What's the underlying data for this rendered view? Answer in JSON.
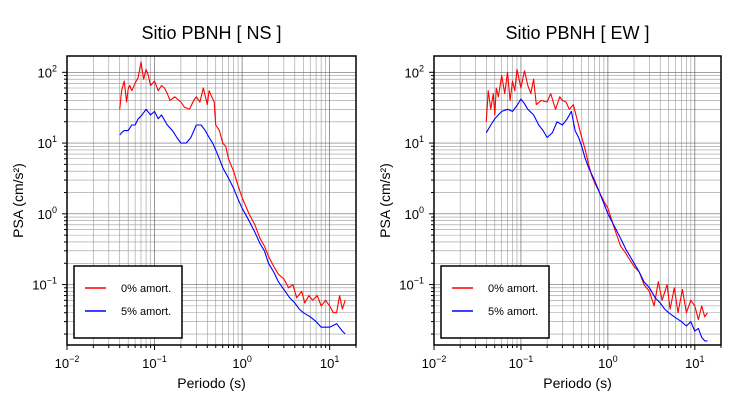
{
  "chart_data": [
    {
      "type": "line",
      "title": "Sitio PBNH [ NS ]",
      "xlabel": "Periodo (s)",
      "ylabel": "PSA (cm/s²)",
      "xscale": "log",
      "yscale": "log",
      "xlim": [
        0.01,
        20
      ],
      "ylim": [
        0.014,
        170
      ],
      "grid": true,
      "legend_position": "bottom-left",
      "xticks": [
        {
          "mant": "10",
          "exp": "−2"
        },
        {
          "mant": "10",
          "exp": "−1"
        },
        {
          "mant": "10",
          "exp": "0"
        },
        {
          "mant": "10",
          "exp": "1"
        }
      ],
      "yticks": [
        {
          "mant": "10",
          "exp": "−1"
        },
        {
          "mant": "10",
          "exp": "0"
        },
        {
          "mant": "10",
          "exp": "1"
        },
        {
          "mant": "10",
          "exp": "2"
        }
      ],
      "series": [
        {
          "name": "0% amort.",
          "color": "#ff0000",
          "x": [
            0.04,
            0.042,
            0.045,
            0.048,
            0.05,
            0.052,
            0.055,
            0.06,
            0.065,
            0.07,
            0.075,
            0.08,
            0.085,
            0.09,
            0.1,
            0.11,
            0.12,
            0.13,
            0.14,
            0.15,
            0.17,
            0.2,
            0.22,
            0.25,
            0.28,
            0.3,
            0.33,
            0.36,
            0.4,
            0.42,
            0.45,
            0.48,
            0.5,
            0.55,
            0.6,
            0.65,
            0.7,
            0.8,
            0.9,
            1.0,
            1.2,
            1.4,
            1.6,
            1.8,
            2.0,
            2.3,
            2.6,
            3.0,
            3.4,
            3.8,
            4.2,
            4.8,
            5.2,
            5.8,
            6.4,
            7.2,
            8.0,
            9.0,
            10.0,
            11.0,
            12.0,
            13.0,
            14.0,
            15.0
          ],
          "y": [
            30,
            55,
            75,
            38,
            58,
            65,
            55,
            70,
            85,
            140,
            80,
            110,
            90,
            65,
            75,
            55,
            65,
            60,
            50,
            40,
            45,
            38,
            32,
            30,
            40,
            45,
            38,
            60,
            35,
            55,
            45,
            38,
            18,
            15,
            10,
            9,
            6,
            4,
            2.5,
            1.7,
            1.0,
            0.7,
            0.45,
            0.35,
            0.25,
            0.18,
            0.14,
            0.12,
            0.09,
            0.1,
            0.065,
            0.08,
            0.055,
            0.07,
            0.06,
            0.07,
            0.05,
            0.06,
            0.05,
            0.04,
            0.04,
            0.07,
            0.045,
            0.06
          ]
        },
        {
          "name": "5% amort.",
          "color": "#0000ff",
          "x": [
            0.04,
            0.042,
            0.045,
            0.05,
            0.055,
            0.06,
            0.065,
            0.07,
            0.08,
            0.09,
            0.1,
            0.11,
            0.12,
            0.14,
            0.16,
            0.18,
            0.2,
            0.23,
            0.26,
            0.3,
            0.34,
            0.38,
            0.42,
            0.46,
            0.5,
            0.55,
            0.6,
            0.7,
            0.8,
            0.9,
            1.0,
            1.2,
            1.4,
            1.6,
            1.8,
            2.0,
            2.3,
            2.6,
            3.0,
            3.5,
            4.0,
            4.5,
            5.0,
            6.0,
            7.0,
            8.0,
            9.0,
            10.0,
            12.0,
            14.0,
            15.0
          ],
          "y": [
            13,
            14,
            15,
            15,
            18,
            18,
            22,
            24,
            30,
            25,
            28,
            22,
            25,
            18,
            15,
            12,
            10,
            10,
            12,
            18,
            18,
            15,
            12,
            10,
            8,
            6,
            4.5,
            3.2,
            2.3,
            1.6,
            1.2,
            0.8,
            0.55,
            0.38,
            0.3,
            0.2,
            0.15,
            0.11,
            0.085,
            0.065,
            0.055,
            0.045,
            0.04,
            0.035,
            0.03,
            0.025,
            0.025,
            0.025,
            0.028,
            0.022,
            0.02
          ]
        }
      ]
    },
    {
      "type": "line",
      "title": "Sitio PBNH [ EW ]",
      "xlabel": "Periodo (s)",
      "ylabel": "PSA (cm/s²)",
      "xscale": "log",
      "yscale": "log",
      "xlim": [
        0.01,
        20
      ],
      "ylim": [
        0.014,
        170
      ],
      "grid": true,
      "legend_position": "bottom-left",
      "xticks": [
        {
          "mant": "10",
          "exp": "−2"
        },
        {
          "mant": "10",
          "exp": "−1"
        },
        {
          "mant": "10",
          "exp": "0"
        },
        {
          "mant": "10",
          "exp": "1"
        }
      ],
      "yticks": [
        {
          "mant": "10",
          "exp": "−1"
        },
        {
          "mant": "10",
          "exp": "0"
        },
        {
          "mant": "10",
          "exp": "1"
        },
        {
          "mant": "10",
          "exp": "2"
        }
      ],
      "series": [
        {
          "name": "0% amort.",
          "color": "#ff0000",
          "x": [
            0.04,
            0.042,
            0.045,
            0.048,
            0.05,
            0.052,
            0.055,
            0.06,
            0.065,
            0.07,
            0.075,
            0.08,
            0.085,
            0.09,
            0.1,
            0.11,
            0.12,
            0.13,
            0.14,
            0.15,
            0.17,
            0.2,
            0.22,
            0.25,
            0.28,
            0.3,
            0.33,
            0.36,
            0.4,
            0.45,
            0.5,
            0.55,
            0.6,
            0.65,
            0.7,
            0.8,
            0.9,
            1.0,
            1.2,
            1.4,
            1.6,
            1.8,
            2.0,
            2.3,
            2.6,
            3.0,
            3.4,
            3.8,
            4.2,
            4.8,
            5.2,
            5.8,
            6.4,
            7.2,
            8.0,
            9.0,
            10.0,
            11.0,
            12.0,
            13.0,
            14.0
          ],
          "y": [
            20,
            55,
            30,
            50,
            25,
            60,
            45,
            90,
            50,
            100,
            40,
            75,
            55,
            110,
            60,
            105,
            65,
            50,
            80,
            35,
            40,
            38,
            50,
            30,
            45,
            40,
            38,
            30,
            35,
            20,
            12,
            8,
            5,
            3.5,
            2.8,
            2.0,
            1.5,
            1.2,
            0.6,
            0.35,
            0.28,
            0.22,
            0.18,
            0.15,
            0.1,
            0.08,
            0.05,
            0.11,
            0.06,
            0.1,
            0.045,
            0.09,
            0.04,
            0.085,
            0.04,
            0.06,
            0.05,
            0.032,
            0.05,
            0.035,
            0.04
          ]
        },
        {
          "name": "5% amort.",
          "color": "#0000ff",
          "x": [
            0.04,
            0.045,
            0.05,
            0.055,
            0.06,
            0.07,
            0.08,
            0.09,
            0.1,
            0.11,
            0.12,
            0.14,
            0.16,
            0.18,
            0.2,
            0.23,
            0.26,
            0.3,
            0.34,
            0.38,
            0.42,
            0.46,
            0.5,
            0.55,
            0.6,
            0.7,
            0.8,
            0.9,
            1.0,
            1.2,
            1.4,
            1.6,
            1.8,
            2.0,
            2.3,
            2.6,
            3.0,
            3.5,
            4.0,
            4.5,
            5.0,
            6.0,
            7.0,
            8.0,
            9.0,
            10.0,
            11.0,
            12.0,
            13.0,
            14.0
          ],
          "y": [
            14,
            18,
            22,
            25,
            28,
            30,
            28,
            34,
            42,
            36,
            30,
            25,
            18,
            15,
            12,
            14,
            20,
            18,
            22,
            28,
            15,
            12,
            9,
            6,
            4.5,
            3.0,
            2.0,
            1.4,
            1.0,
            0.65,
            0.45,
            0.32,
            0.25,
            0.2,
            0.15,
            0.11,
            0.09,
            0.065,
            0.055,
            0.045,
            0.04,
            0.034,
            0.03,
            0.026,
            0.03,
            0.022,
            0.024,
            0.018,
            0.016,
            0.016
          ]
        }
      ]
    }
  ]
}
